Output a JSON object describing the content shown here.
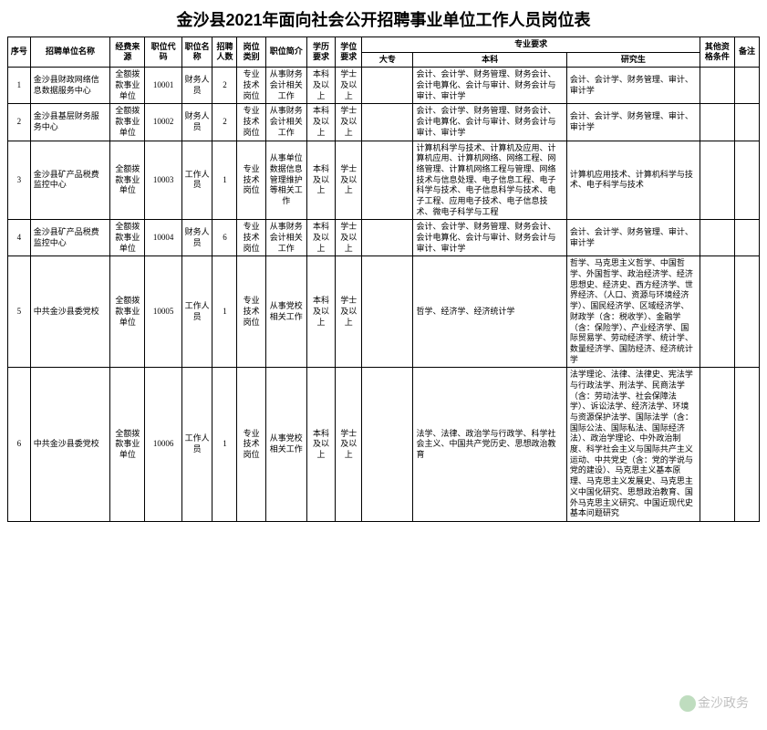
{
  "title": "金沙县2021年面向社会公开招聘事业单位工作人员岗位表",
  "headers": {
    "h1": "序号",
    "h2": "招聘单位名称",
    "h3": "经费来源",
    "h4": "职位代码",
    "h5": "职位名称",
    "h6": "招聘人数",
    "h7": "岗位类别",
    "h8": "职位简介",
    "h9": "学历要求",
    "h10": "学位要求",
    "h11": "专业要求",
    "h11a": "大专",
    "h11b": "本科",
    "h11c": "研究生",
    "h12": "其他资格条件",
    "h13": "备注"
  },
  "rows": [
    {
      "idx": "1",
      "unit": "金沙县财政网络信息数据服务中心",
      "fund": "全额拨款事业单位",
      "code": "10001",
      "pos": "财务人员",
      "num": "2",
      "cat": "专业技术岗位",
      "desc": "从事财务会计相关工作",
      "edu": "本科及以上",
      "deg": "学士及以上",
      "dz": "",
      "bk": "会计、会计学、财务管理、财务会计、会计电算化、会计与审计、财务会计与审计、审计学",
      "yjs": "会计、会计学、财务管理、审计、审计学"
    },
    {
      "idx": "2",
      "unit": "金沙县基层财务服务中心",
      "fund": "全额拨款事业单位",
      "code": "10002",
      "pos": "财务人员",
      "num": "2",
      "cat": "专业技术岗位",
      "desc": "从事财务会计相关工作",
      "edu": "本科及以上",
      "deg": "学士及以上",
      "dz": "",
      "bk": "会计、会计学、财务管理、财务会计、会计电算化、会计与审计、财务会计与审计、审计学",
      "yjs": "会计、会计学、财务管理、审计、审计学"
    },
    {
      "idx": "3",
      "unit": "金沙县矿产品税费监控中心",
      "fund": "全额拨款事业单位",
      "code": "10003",
      "pos": "工作人员",
      "num": "1",
      "cat": "专业技术岗位",
      "desc": "从事单位数据信息管理维护等相关工作",
      "edu": "本科及以上",
      "deg": "学士及以上",
      "dz": "",
      "bk": "计算机科学与技术、计算机及应用、计算机应用、计算机网络、网络工程、网络管理、计算机网络工程与管理、网络技术与信息处理、电子信息工程、电子科学与技术、电子信息科学与技术、电子工程、应用电子技术、电子信息技术、微电子科学与工程",
      "yjs": "计算机应用技术、计算机科学与技术、电子科学与技术"
    },
    {
      "idx": "4",
      "unit": "金沙县矿产品税费监控中心",
      "fund": "全额拨款事业单位",
      "code": "10004",
      "pos": "财务人员",
      "num": "6",
      "cat": "专业技术岗位",
      "desc": "从事财务会计相关工作",
      "edu": "本科及以上",
      "deg": "学士及以上",
      "dz": "",
      "bk": "会计、会计学、财务管理、财务会计、会计电算化、会计与审计、财务会计与审计、审计学",
      "yjs": "会计、会计学、财务管理、审计、审计学"
    },
    {
      "idx": "5",
      "unit": "中共金沙县委党校",
      "fund": "全额拨款事业单位",
      "code": "10005",
      "pos": "工作人员",
      "num": "1",
      "cat": "专业技术岗位",
      "desc": "从事党校相关工作",
      "edu": "本科及以上",
      "deg": "学士及以上",
      "dz": "",
      "bk": "哲学、经济学、经济统计学",
      "yjs": "哲学、马克思主义哲学、中国哲学、外国哲学、政治经济学、经济思想史、经济史、西方经济学、世界经济、（人口、资源与环境经济学）、国民经济学、区域经济学、财政学（含：税收学）、金融学（含：保险学）、产业经济学、国际贸易学、劳动经济学、统计学、数量经济学、国防经济、经济统计学"
    },
    {
      "idx": "6",
      "unit": "中共金沙县委党校",
      "fund": "全额拨款事业单位",
      "code": "10006",
      "pos": "工作人员",
      "num": "1",
      "cat": "专业技术岗位",
      "desc": "从事党校相关工作",
      "edu": "本科及以上",
      "deg": "学士及以上",
      "dz": "",
      "bk": "法学、法律、政治学与行政学、科学社会主义、中国共产党历史、思想政治教育",
      "yjs": "法学理论、法律、法律史、宪法学与行政法学、刑法学、民商法学（含：劳动法学、社会保障法学）、诉讼法学、经济法学、环境与资源保护法学、国际法学（含：国际公法、国际私法、国际经济法）、政治学理论、中外政治制度、科学社会主义与国际共产主义运动、中共党史（含：党的学说与党的建设）、马克思主义基本原理、马克思主义发展史、马克思主义中国化研究、思想政治教育、国外马克思主义研究、中国近现代史基本问题研究"
    }
  ],
  "watermark": "金沙政务",
  "colwidths": {
    "c1": 22,
    "c2": 78,
    "c3": 34,
    "c4": 36,
    "c5": 30,
    "c6": 24,
    "c7": 28,
    "c8": 40,
    "c9": 28,
    "c10": 26,
    "c11": 50,
    "c12": 150,
    "c13": 130,
    "c14": 34,
    "c15": 24
  }
}
